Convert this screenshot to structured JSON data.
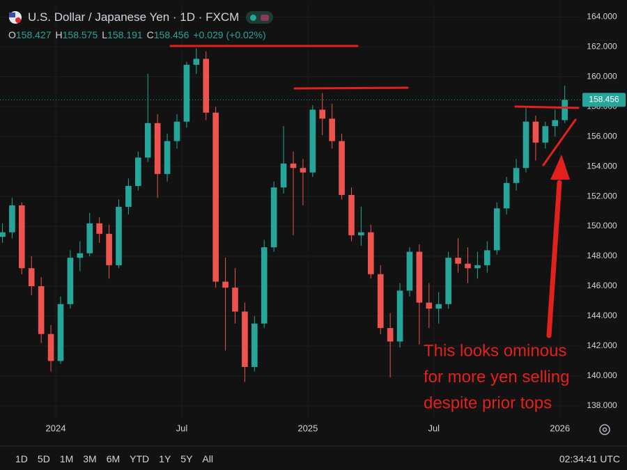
{
  "header": {
    "title": "U.S. Dollar / Japanese Yen · 1D · FXCM",
    "ohlc": [
      {
        "key": "O",
        "value": "158.427"
      },
      {
        "key": "H",
        "value": "158.575"
      },
      {
        "key": "L",
        "value": "158.191"
      },
      {
        "key": "C",
        "value": "158.456"
      }
    ],
    "change": "+0.029 (+0.02%)"
  },
  "toolbar": {
    "ranges": [
      "1D",
      "5D",
      "1M",
      "3M",
      "6M",
      "YTD",
      "1Y",
      "5Y",
      "All"
    ],
    "time": "02:34:41 UTC"
  },
  "chart_data": {
    "type": "candlestick",
    "up_color": "#26a69a",
    "down_color": "#ef5350",
    "grid": true,
    "annotation": [
      "This looks ominous",
      "for more yen selling",
      "despite prior tops"
    ],
    "annotation_color": "#e3211c",
    "last_price": 158.456,
    "last_price_color": "#26a69a",
    "categories": [
      null,
      null,
      null,
      null,
      null,
      null,
      null,
      null,
      null,
      null,
      null,
      null,
      null,
      null,
      null,
      null,
      null,
      null,
      null,
      null,
      null,
      null,
      null,
      null,
      null,
      null,
      null,
      null,
      null,
      null,
      null,
      null,
      null,
      null,
      null,
      null,
      null,
      null,
      null,
      null,
      null,
      null,
      null,
      null,
      null,
      null,
      null,
      null,
      null,
      null,
      null,
      null,
      null,
      null,
      null,
      null,
      null,
      null,
      null
    ],
    "open": [
      149.3,
      149.6,
      151.4,
      147.2,
      146.0,
      142.8,
      141.0,
      144.8,
      147.9,
      148.2,
      150.2,
      149.5,
      147.4,
      151.3,
      152.7,
      154.6,
      156.9,
      153.5,
      155.7,
      157.0,
      160.8,
      161.2,
      157.6,
      146.3,
      145.9,
      144.3,
      140.6,
      143.5,
      148.6,
      152.6,
      154.2,
      153.9,
      153.6,
      157.8,
      157.2,
      155.7,
      152.1,
      149.4,
      149.6,
      146.8,
      143.2,
      142.3,
      145.7,
      148.3,
      144.9,
      144.5,
      144.8,
      147.9,
      147.5,
      147.2,
      147.4,
      148.4,
      151.2,
      152.9,
      153.9,
      157.0,
      155.6,
      156.7,
      157.1
    ],
    "high": [
      150.2,
      151.9,
      151.6,
      148.0,
      146.6,
      143.4,
      145.3,
      148.4,
      149.0,
      150.9,
      150.6,
      150.1,
      151.8,
      153.2,
      155.0,
      160.2,
      157.5,
      156.2,
      157.5,
      161.0,
      161.9,
      161.7,
      158.0,
      147.9,
      147.2,
      144.9,
      144.0,
      149.1,
      153.0,
      156.7,
      155.0,
      154.5,
      158.1,
      158.9,
      158.2,
      156.2,
      152.6,
      151.3,
      150.1,
      147.4,
      144.2,
      146.2,
      148.6,
      148.8,
      146.2,
      145.6,
      148.3,
      149.2,
      148.6,
      148.3,
      149.0,
      151.6,
      153.3,
      154.5,
      157.9,
      157.4,
      157.0,
      157.8,
      159.4
    ],
    "low": [
      148.9,
      149.2,
      146.8,
      145.4,
      142.2,
      140.3,
      140.8,
      144.5,
      147.0,
      148.0,
      148.9,
      146.5,
      147.2,
      150.8,
      152.4,
      154.3,
      151.9,
      153.0,
      155.2,
      156.6,
      160.2,
      157.1,
      145.9,
      141.7,
      143.5,
      139.6,
      140.3,
      143.2,
      148.3,
      152.2,
      149.4,
      151.4,
      153.3,
      156.1,
      155.2,
      151.8,
      149.0,
      148.7,
      146.5,
      142.8,
      139.9,
      141.9,
      145.3,
      142.1,
      143.2,
      143.5,
      144.5,
      146.9,
      146.2,
      146.5,
      146.9,
      148.1,
      150.8,
      152.4,
      153.6,
      154.4,
      155.2,
      156.0,
      156.9
    ],
    "close": [
      149.6,
      151.4,
      147.2,
      146.0,
      142.8,
      141.0,
      144.8,
      147.9,
      148.2,
      150.2,
      149.5,
      147.4,
      151.3,
      152.7,
      154.6,
      156.9,
      153.5,
      155.7,
      157.0,
      160.8,
      161.2,
      157.6,
      146.3,
      145.9,
      144.3,
      140.6,
      143.5,
      148.6,
      152.6,
      154.2,
      153.9,
      153.6,
      157.8,
      157.2,
      155.7,
      152.1,
      149.4,
      149.6,
      146.8,
      143.2,
      142.3,
      145.7,
      148.3,
      144.9,
      144.5,
      144.8,
      147.9,
      147.5,
      147.2,
      147.4,
      148.4,
      151.2,
      152.9,
      153.9,
      157.0,
      155.6,
      156.7,
      157.1,
      158.456
    ],
    "xlim": [
      -0.25,
      59.75
    ],
    "xticks": [
      {
        "value": 5.5,
        "label": "2024"
      },
      {
        "value": 18.5,
        "label": "Jul"
      },
      {
        "value": 31.5,
        "label": "2025"
      },
      {
        "value": 44.5,
        "label": "Jul"
      },
      {
        "value": 57.5,
        "label": "2026"
      }
    ],
    "ylim": [
      137.2,
      164.9
    ],
    "yticks": [
      {
        "value": 138,
        "label": "138.000"
      },
      {
        "value": 140,
        "label": "140.000"
      },
      {
        "value": 142,
        "label": "142.000"
      },
      {
        "value": 144,
        "label": "144.000"
      },
      {
        "value": 146,
        "label": "146.000"
      },
      {
        "value": 148,
        "label": "148.000"
      },
      {
        "value": 150,
        "label": "150.000"
      },
      {
        "value": 152,
        "label": "152.000"
      },
      {
        "value": 154,
        "label": "154.000"
      },
      {
        "value": 156,
        "label": "156.000"
      },
      {
        "value": 158,
        "label": "158.000"
      },
      {
        "value": 160,
        "label": "160.000"
      },
      {
        "value": 162,
        "label": "162.000"
      },
      {
        "value": 164,
        "label": "164.000"
      }
    ]
  }
}
